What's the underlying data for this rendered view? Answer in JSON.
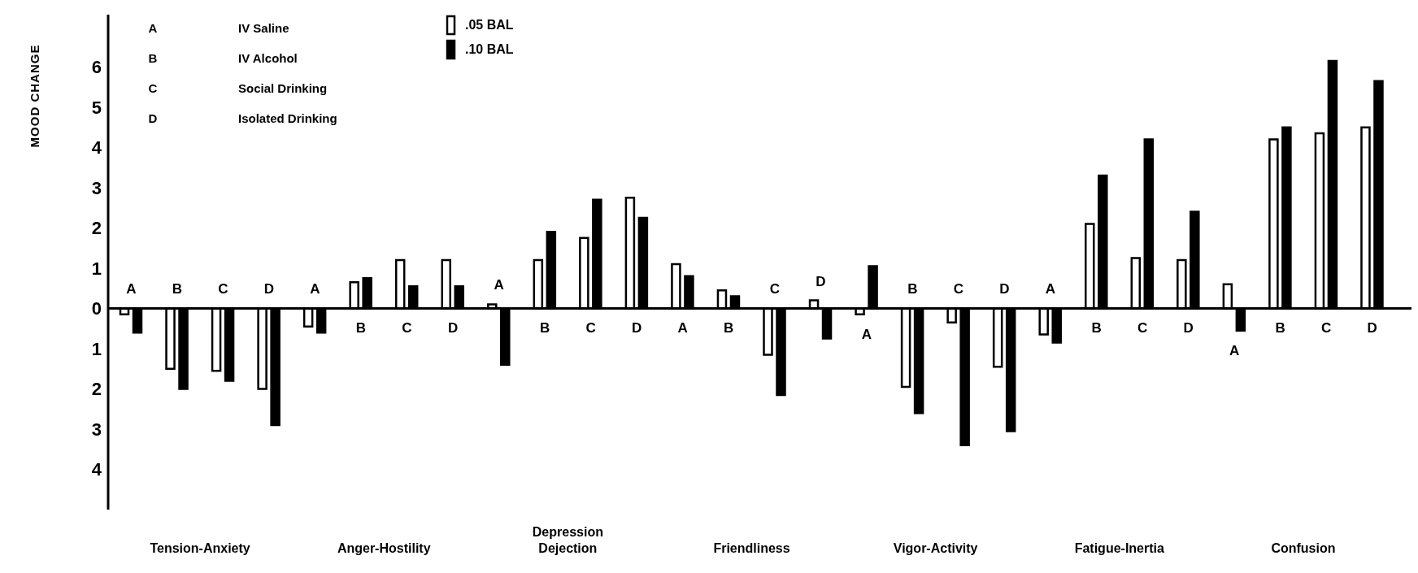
{
  "chart_data": {
    "type": "bar",
    "ylabel": "MOOD CHANGE",
    "categories": [
      "A",
      "B",
      "C",
      "D",
      "A",
      "B",
      "C",
      "D",
      "A",
      "B",
      "C",
      "D",
      "A",
      "B",
      "C",
      "D",
      "A",
      "B",
      "C",
      "D",
      "A",
      "B",
      "C",
      "D",
      "A",
      "B",
      "C",
      "D"
    ],
    "series": [
      {
        "name": ".05 BAL",
        "color": "#ffffff",
        "values": [
          -0.15,
          -1.5,
          -1.55,
          -2.0,
          -0.45,
          0.65,
          1.2,
          1.2,
          0.1,
          1.2,
          1.75,
          2.75,
          1.1,
          0.45,
          -1.15,
          0.2,
          -0.15,
          -1.95,
          -0.35,
          -1.45,
          -0.65,
          2.1,
          1.25,
          1.2,
          0.6,
          4.2,
          4.35,
          4.5
        ]
      },
      {
        "name": ".10 BAL",
        "color": "#000000",
        "values": [
          -0.6,
          -2.0,
          -1.8,
          -2.9,
          -0.6,
          0.75,
          0.55,
          0.55,
          -1.4,
          1.9,
          2.7,
          2.25,
          0.8,
          0.3,
          -2.15,
          -0.75,
          1.05,
          -2.6,
          -3.4,
          -3.05,
          -0.85,
          3.3,
          4.2,
          2.4,
          -0.55,
          4.5,
          6.15,
          5.65
        ]
      }
    ],
    "ylim": [
      -5,
      7.3
    ],
    "yticks": [
      {
        "value": -4,
        "label": "4"
      },
      {
        "value": -3,
        "label": "3"
      },
      {
        "value": -2,
        "label": "2"
      },
      {
        "value": -1,
        "label": "1"
      },
      0,
      1,
      2,
      3,
      4,
      5,
      6
    ],
    "grid": false,
    "legend": "top",
    "annotations": [
      "Tension-Anxiety",
      "Anger-Hostility",
      "Depression\nDejection",
      "Friendliness",
      "Vigor-Activity",
      "Fatigue-Inertia",
      "Confusion",
      "A IV Saline",
      "B IV Alcohol",
      "C Social Drinking",
      "D Isolated Drinking"
    ]
  }
}
